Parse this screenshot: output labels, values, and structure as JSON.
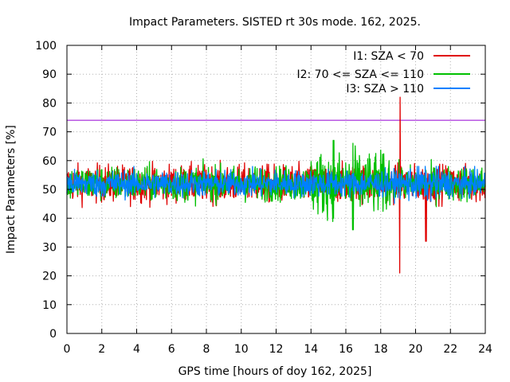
{
  "chart_data": {
    "type": "line",
    "title": "Impact Parameters. SISTED rt 30s mode. 162, 2025.",
    "xlabel": "GPS time [hours of doy 162, 2025]",
    "ylabel": "Impact Parameters [%]",
    "xlim": [
      0,
      24
    ],
    "ylim": [
      0,
      100
    ],
    "xticks": [
      0,
      2,
      4,
      6,
      8,
      10,
      12,
      14,
      16,
      18,
      20,
      22,
      24
    ],
    "yticks": [
      0,
      10,
      20,
      30,
      40,
      50,
      60,
      70,
      80,
      90,
      100
    ],
    "grid": true,
    "legend_position": "top-right",
    "threshold": {
      "value": 74,
      "color": "#9400d3"
    },
    "series": [
      {
        "name": "I1: SZA < 70",
        "color": "#e00000",
        "baseline": 52,
        "range_min": 21,
        "range_max": 82,
        "events": [
          {
            "x": 19.1,
            "low": 21,
            "high": 82
          },
          {
            "x": 20.6,
            "low": 32,
            "high": 56
          }
        ]
      },
      {
        "name": "I2: 70 <= SZA <= 110",
        "color": "#00c000",
        "baseline": 52,
        "range_min": 36,
        "range_max": 67,
        "events": [
          {
            "x": 16.4,
            "low": 36,
            "high": 66
          },
          {
            "x": 15.3,
            "low": 40,
            "high": 67
          }
        ]
      },
      {
        "name": "I3: SZA > 110",
        "color": "#0080ff",
        "baseline": 52,
        "range_min": 40,
        "range_max": 58,
        "events": []
      }
    ]
  }
}
